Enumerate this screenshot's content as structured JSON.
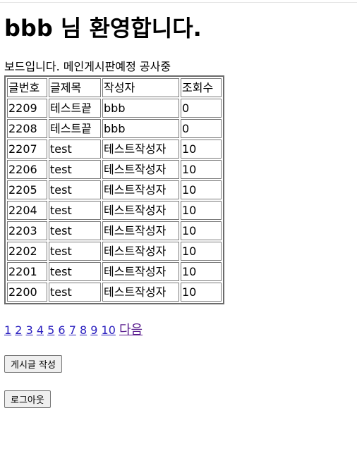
{
  "header": {
    "welcome": "bbb 님 환영합니다."
  },
  "intro_text": "보드입니다. 메인게시판예정 공사중",
  "table": {
    "columns": [
      "글번호",
      "글제목",
      "작성자",
      "조회수"
    ],
    "rows": [
      [
        "2209",
        "테스트끝",
        "bbb",
        "0"
      ],
      [
        "2208",
        "테스트끝",
        "bbb",
        "0"
      ],
      [
        "2207",
        "test",
        "테스트작성자",
        "10"
      ],
      [
        "2206",
        "test",
        "테스트작성자",
        "10"
      ],
      [
        "2205",
        "test",
        "테스트작성자",
        "10"
      ],
      [
        "2204",
        "test",
        "테스트작성자",
        "10"
      ],
      [
        "2203",
        "test",
        "테스트작성자",
        "10"
      ],
      [
        "2202",
        "test",
        "테스트작성자",
        "10"
      ],
      [
        "2201",
        "test",
        "테스트작성자",
        "10"
      ],
      [
        "2200",
        "test",
        "테스트작성자",
        "10"
      ]
    ]
  },
  "pagination": {
    "pages": [
      "1",
      "2",
      "3",
      "4",
      "5",
      "6",
      "7",
      "8",
      "9",
      "10"
    ],
    "next_label": "다음"
  },
  "buttons": {
    "write_label": "게시글 작성",
    "logout_label": "로그아웃"
  }
}
